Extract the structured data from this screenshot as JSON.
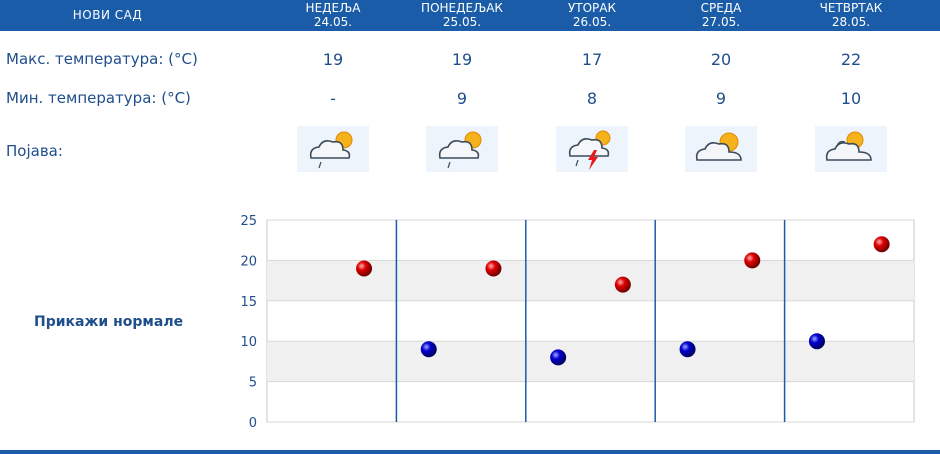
{
  "header": {
    "city": "НОВИ САД",
    "days": [
      {
        "name": "НЕДЕЉА",
        "date": "24.05."
      },
      {
        "name": "ПОНЕДЕЉАК",
        "date": "25.05."
      },
      {
        "name": "УТОРАК",
        "date": "26.05."
      },
      {
        "name": "СРЕДА",
        "date": "27.05."
      },
      {
        "name": "ЧЕТВРТАК",
        "date": "28.05."
      }
    ]
  },
  "rows": {
    "max_label": "Макс. температура: (°C)",
    "min_label": "Мин. температура: (°C)",
    "phenomenon_label": "Појава:",
    "max_values": [
      "19",
      "19",
      "17",
      "20",
      "22"
    ],
    "min_values": [
      "-",
      "9",
      "8",
      "9",
      "10"
    ],
    "icons": [
      "cloud-sun-rain-icon",
      "cloud-sun-rain-icon",
      "cloud-sun-thunderstorm-icon",
      "cloud-sun-icon",
      "cloud-sun-icon"
    ]
  },
  "normals_link": "Прикажи нормале",
  "colors": {
    "header_bg": "#1a5ca8",
    "text": "#1f4e8c",
    "max_dot": "#d40000",
    "min_dot": "#0000c0"
  },
  "chart_data": {
    "type": "scatter",
    "title": "",
    "xlabel": "",
    "ylabel": "",
    "ylim": [
      0,
      25
    ],
    "yticks": [
      "0",
      "5",
      "10",
      "15",
      "20",
      "25"
    ],
    "categories": [
      "24.05.",
      "25.05.",
      "26.05.",
      "27.05.",
      "28.05."
    ],
    "series": [
      {
        "values": [
          19,
          19,
          17,
          20,
          22
        ]
      },
      {
        "values": [
          null,
          9,
          8,
          9,
          10
        ]
      }
    ]
  }
}
